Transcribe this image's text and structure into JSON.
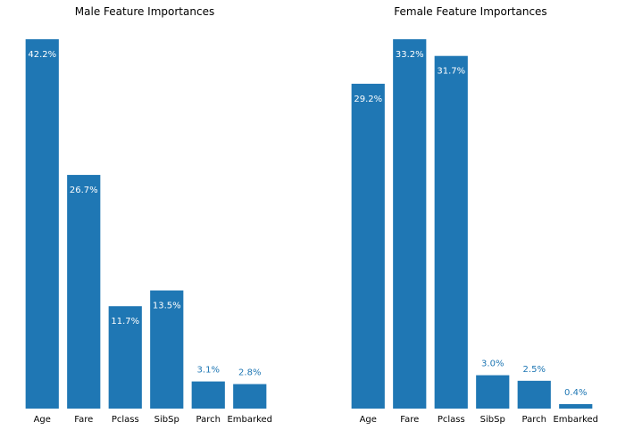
{
  "colors": {
    "bar": "#1f77b4",
    "label_inside": "#ffffff",
    "label_outside": "#1f77b4",
    "background": "#ffffff"
  },
  "chart_data": [
    {
      "type": "bar",
      "title": "Male Feature Importances",
      "categories": [
        "Age",
        "Fare",
        "Pclass",
        "SibSp",
        "Parch",
        "Embarked"
      ],
      "values": [
        42.2,
        26.7,
        11.7,
        13.5,
        3.1,
        2.8
      ],
      "value_labels": [
        "42.2%",
        "26.7%",
        "11.7%",
        "13.5%",
        "3.1%",
        "2.8%"
      ],
      "ylim": [
        0,
        42.2
      ],
      "grid": false,
      "legend": "none",
      "xlabel": "",
      "ylabel": ""
    },
    {
      "type": "bar",
      "title": "Female Feature Importances",
      "categories": [
        "Age",
        "Fare",
        "Pclass",
        "SibSp",
        "Parch",
        "Embarked"
      ],
      "values": [
        29.2,
        33.2,
        31.7,
        3.0,
        2.5,
        0.4
      ],
      "value_labels": [
        "29.2%",
        "33.2%",
        "31.7%",
        "3.0%",
        "2.5%",
        "0.4%"
      ],
      "ylim": [
        0,
        33.2
      ],
      "grid": false,
      "legend": "none",
      "xlabel": "",
      "ylabel": ""
    }
  ]
}
